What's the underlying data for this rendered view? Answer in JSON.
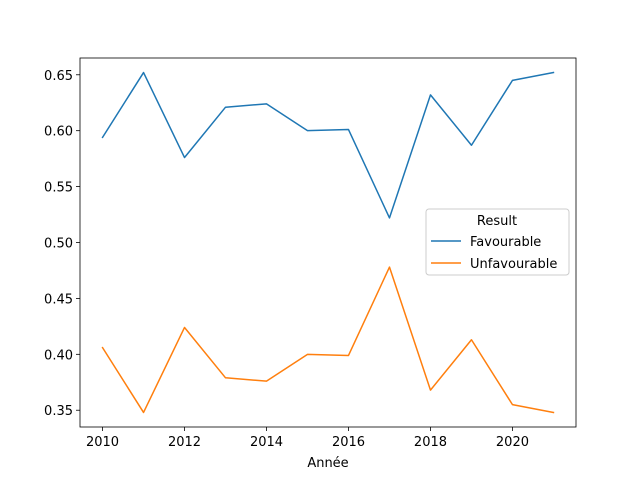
{
  "chart_data": {
    "type": "line",
    "title": "",
    "xlabel": "Année",
    "ylabel": "",
    "x": [
      2010,
      2011,
      2012,
      2013,
      2014,
      2015,
      2016,
      2017,
      2018,
      2019,
      2020,
      2021
    ],
    "xlim": [
      2009.45,
      2021.55
    ],
    "ylim": [
      0.335,
      0.665
    ],
    "x_ticks": [
      2010,
      2012,
      2014,
      2016,
      2018,
      2020
    ],
    "y_ticks": [
      0.35,
      0.4,
      0.45,
      0.5,
      0.55,
      0.6,
      0.65
    ],
    "y_tick_labels": [
      "0.35",
      "0.40",
      "0.45",
      "0.50",
      "0.55",
      "0.60",
      "0.65"
    ],
    "grid": false,
    "legend": {
      "title": "Result",
      "placement": "center-right"
    },
    "series": [
      {
        "name": "Favourable",
        "color": "#1f77b4",
        "values": [
          0.594,
          0.652,
          0.576,
          0.621,
          0.624,
          0.6,
          0.601,
          0.522,
          0.632,
          0.587,
          0.645,
          0.652
        ]
      },
      {
        "name": "Unfavourable",
        "color": "#ff7f0e",
        "values": [
          0.406,
          0.348,
          0.424,
          0.379,
          0.376,
          0.4,
          0.399,
          0.478,
          0.368,
          0.413,
          0.355,
          0.348
        ]
      }
    ]
  }
}
